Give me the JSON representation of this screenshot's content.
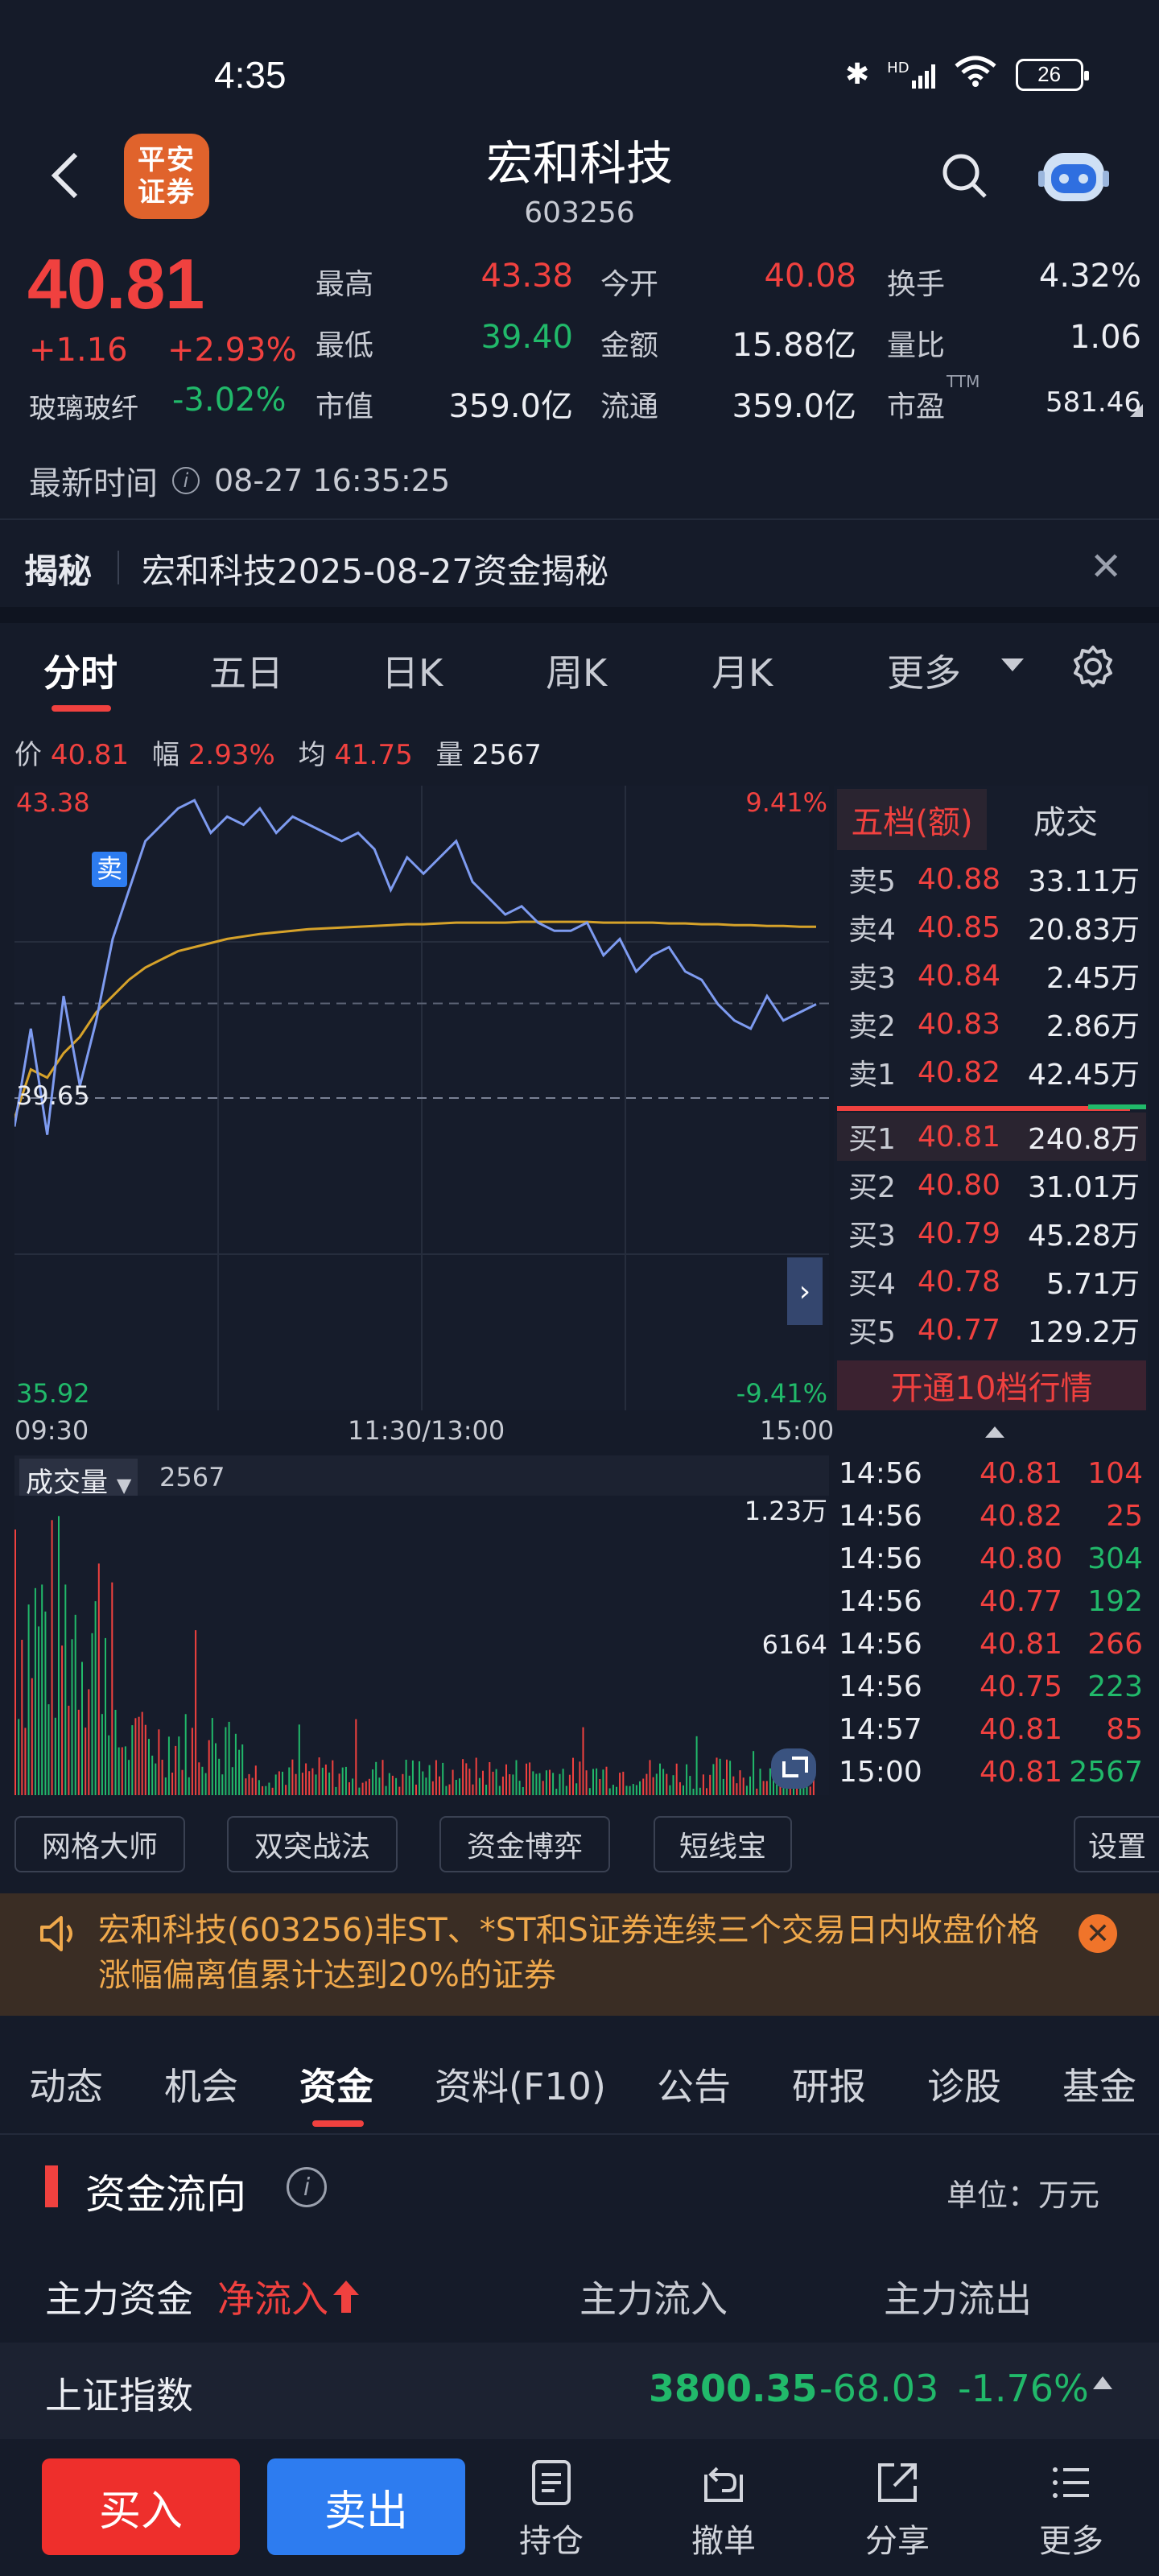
{
  "status": {
    "time": "4:35",
    "battery": "26",
    "hd": "HD"
  },
  "header": {
    "logo_line1": "平安",
    "logo_line2": "证券",
    "title": "宏和科技",
    "code": "603256"
  },
  "quote": {
    "price": "40.81",
    "change": "+1.16",
    "change_pct": "+2.93%",
    "sector": "玻璃玻纤",
    "sector_pct": "-3.02%",
    "high_label": "最高",
    "high": "43.38",
    "open_label": "今开",
    "open": "40.08",
    "turnover_label": "换手",
    "turnover": "4.32%",
    "low_label": "最低",
    "low": "39.40",
    "amount_label": "金额",
    "amount": "15.88亿",
    "vol_ratio_label": "量比",
    "vol_ratio": "1.06",
    "mcap_label": "市值",
    "mcap": "359.0亿",
    "float_label": "流通",
    "float": "359.0亿",
    "pe_label": "市盈",
    "pe_sup": "TTM",
    "pe": "581.46"
  },
  "update": {
    "label": "最新时间",
    "time": "08-27 16:35:25"
  },
  "reveal": {
    "tag": "揭秘",
    "text": "宏和科技2025-08-27资金揭秘"
  },
  "ktabs": [
    "分时",
    "五日",
    "日K",
    "周K",
    "月K",
    "更多"
  ],
  "info_line": {
    "price_label": "价",
    "price": "40.81",
    "amp_label": "幅",
    "amp": "2.93%",
    "avg_label": "均",
    "avg": "41.75",
    "vol_label": "量",
    "vol": "2567"
  },
  "chart_data": {
    "type": "line",
    "title": "",
    "x_ticks": [
      "09:30",
      "11:30/13:00",
      "15:00"
    ],
    "y_left": [
      "43.38",
      "39.65",
      "35.92"
    ],
    "y_right": [
      "9.41%",
      "-9.41%"
    ],
    "ylim": [
      35.92,
      43.38
    ],
    "prev_close": 39.65,
    "series": [
      {
        "color": "#7e9bf0",
        "values": [
          39.3,
          40.5,
          39.2,
          40.9,
          39.8,
          40.6,
          41.6,
          42.2,
          42.8,
          43.0,
          43.2,
          43.3,
          42.9,
          43.1,
          43.0,
          43.2,
          42.9,
          43.1,
          43.0,
          42.9,
          42.8,
          42.9,
          42.7,
          42.2,
          42.6,
          42.4,
          42.6,
          42.8,
          42.3,
          42.1,
          41.9,
          42.0,
          41.8,
          41.7,
          41.7,
          41.8,
          41.4,
          41.6,
          41.2,
          41.4,
          41.5,
          41.2,
          41.1,
          40.8,
          40.6,
          40.5,
          40.9,
          40.6,
          40.7,
          40.8
        ]
      },
      {
        "color": "#d6a22a",
        "values": [
          39.4,
          40.0,
          39.9,
          40.2,
          40.4,
          40.7,
          40.9,
          41.1,
          41.25,
          41.35,
          41.45,
          41.5,
          41.55,
          41.6,
          41.63,
          41.66,
          41.68,
          41.7,
          41.72,
          41.73,
          41.74,
          41.75,
          41.76,
          41.77,
          41.78,
          41.78,
          41.79,
          41.8,
          41.8,
          41.8,
          41.8,
          41.81,
          41.81,
          41.81,
          41.81,
          41.81,
          41.8,
          41.8,
          41.8,
          41.8,
          41.79,
          41.79,
          41.78,
          41.78,
          41.77,
          41.77,
          41.76,
          41.76,
          41.75,
          41.75
        ]
      }
    ],
    "marker": "卖",
    "volume": {
      "label": "成交量",
      "value": "2567",
      "max_label": "1.23万",
      "mid_label": "6164"
    }
  },
  "orderbook": {
    "tab_active": "五档(额)",
    "tab_other": "成交",
    "asks": [
      {
        "label": "卖5",
        "price": "40.88",
        "vol": "33.11万"
      },
      {
        "label": "卖4",
        "price": "40.85",
        "vol": "20.83万"
      },
      {
        "label": "卖3",
        "price": "40.84",
        "vol": "2.45万"
      },
      {
        "label": "卖2",
        "price": "40.83",
        "vol": "2.86万"
      },
      {
        "label": "卖1",
        "price": "40.82",
        "vol": "42.45万"
      }
    ],
    "bids": [
      {
        "label": "买1",
        "price": "40.81",
        "vol": "240.8万"
      },
      {
        "label": "买2",
        "price": "40.80",
        "vol": "31.01万"
      },
      {
        "label": "买3",
        "price": "40.79",
        "vol": "45.28万"
      },
      {
        "label": "买4",
        "price": "40.78",
        "vol": "5.71万"
      },
      {
        "label": "买5",
        "price": "40.77",
        "vol": "129.2万"
      }
    ],
    "open10": "开通10档行情"
  },
  "ticks": [
    {
      "time": "14:56",
      "price": "40.81",
      "vol": "104",
      "dir": "red"
    },
    {
      "time": "14:56",
      "price": "40.82",
      "vol": "25",
      "dir": "red"
    },
    {
      "time": "14:56",
      "price": "40.80",
      "vol": "304",
      "dir": "green"
    },
    {
      "time": "14:56",
      "price": "40.77",
      "vol": "192",
      "dir": "green"
    },
    {
      "time": "14:56",
      "price": "40.81",
      "vol": "266",
      "dir": "red"
    },
    {
      "time": "14:56",
      "price": "40.75",
      "vol": "223",
      "dir": "green"
    },
    {
      "time": "14:57",
      "price": "40.81",
      "vol": "85",
      "dir": "red"
    },
    {
      "time": "15:00",
      "price": "40.81",
      "vol": "2567",
      "dir": "green"
    }
  ],
  "tools": [
    "网格大师",
    "双突战法",
    "资金博弈",
    "短线宝",
    "设置"
  ],
  "notice": {
    "text": "宏和科技(603256)非ST、*ST和S证券连续三个交易日内收盘价格涨幅偏离值累计达到20%的证券"
  },
  "stabs": [
    "动态",
    "机会",
    "资金",
    "资料(F10)",
    "公告",
    "研报",
    "诊股",
    "基金"
  ],
  "capital": {
    "title": "资金流向",
    "unit": "单位：万元",
    "main": "主力资金",
    "net": "净流入",
    "inflow": "主力流入",
    "outflow": "主力流出"
  },
  "index": {
    "name": "上证指数",
    "price": "3800.35",
    "change": "-68.03",
    "pct": "-1.76%"
  },
  "bottom": {
    "buy": "买入",
    "sell": "卖出",
    "hold": "持仓",
    "cancel": "撤单",
    "share": "分享",
    "more": "更多"
  },
  "colors": {
    "up": "#f0413f",
    "down": "#21b96a",
    "bg": "#151b29",
    "price_line": "#7e9bf0",
    "avg_line": "#d6a22a"
  }
}
